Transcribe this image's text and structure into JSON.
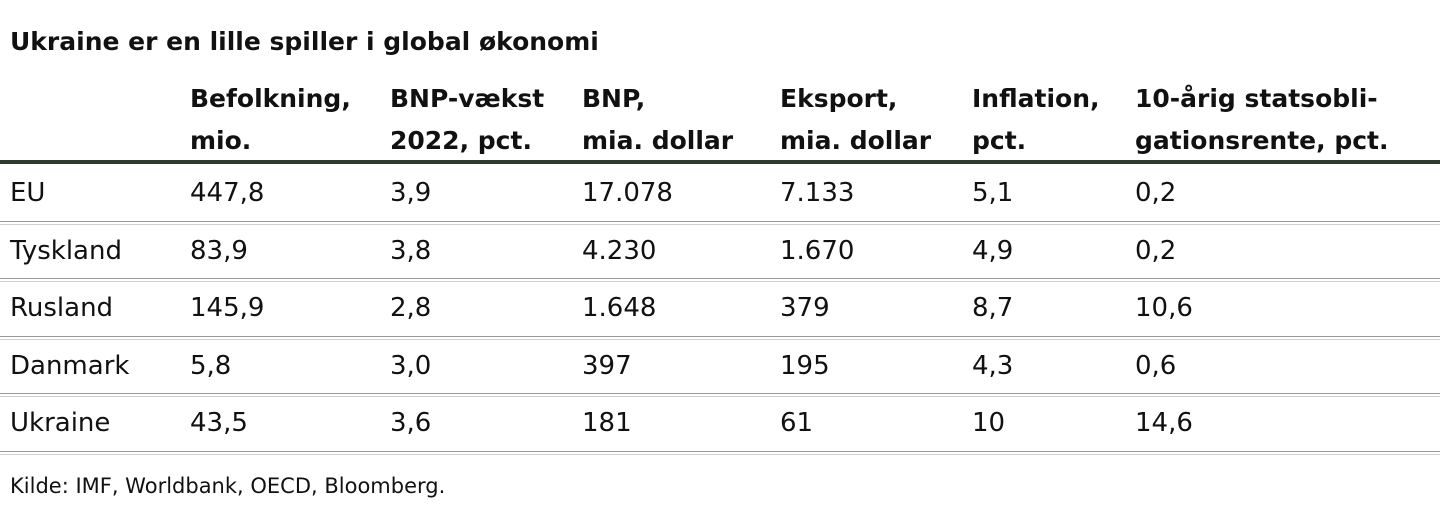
{
  "title": "Ukraine er en lille spiller i global økonomi",
  "table": {
    "header": [
      [],
      [
        "Befolkning,",
        "mio."
      ],
      [
        "BNP-vækst",
        "2022, pct."
      ],
      [
        "BNP,",
        "mia. dollar"
      ],
      [
        "Eksport,",
        "mia. dollar"
      ],
      [
        "Inflation,",
        "pct."
      ],
      [
        "10-årig statsobli-",
        "gationsrente, pct."
      ]
    ],
    "rows": [
      [
        "EU",
        "447,8",
        "3,9",
        "17.078",
        "7.133",
        "5,1",
        "0,2"
      ],
      [
        "Tyskland",
        "83,9",
        "3,8",
        "4.230",
        "1.670",
        "4,9",
        "0,2"
      ],
      [
        "Rusland",
        "145,9",
        "2,8",
        "1.648",
        "379",
        "8,7",
        "10,6"
      ],
      [
        "Danmark",
        "5,8",
        "3,0",
        "397",
        "195",
        "4,3",
        "0,6"
      ],
      [
        "Ukraine",
        "43,5",
        "3,6",
        "181",
        "61",
        "10",
        "14,6"
      ]
    ]
  },
  "source": "Kilde: IMF, Worldbank, OECD, Bloomberg."
}
